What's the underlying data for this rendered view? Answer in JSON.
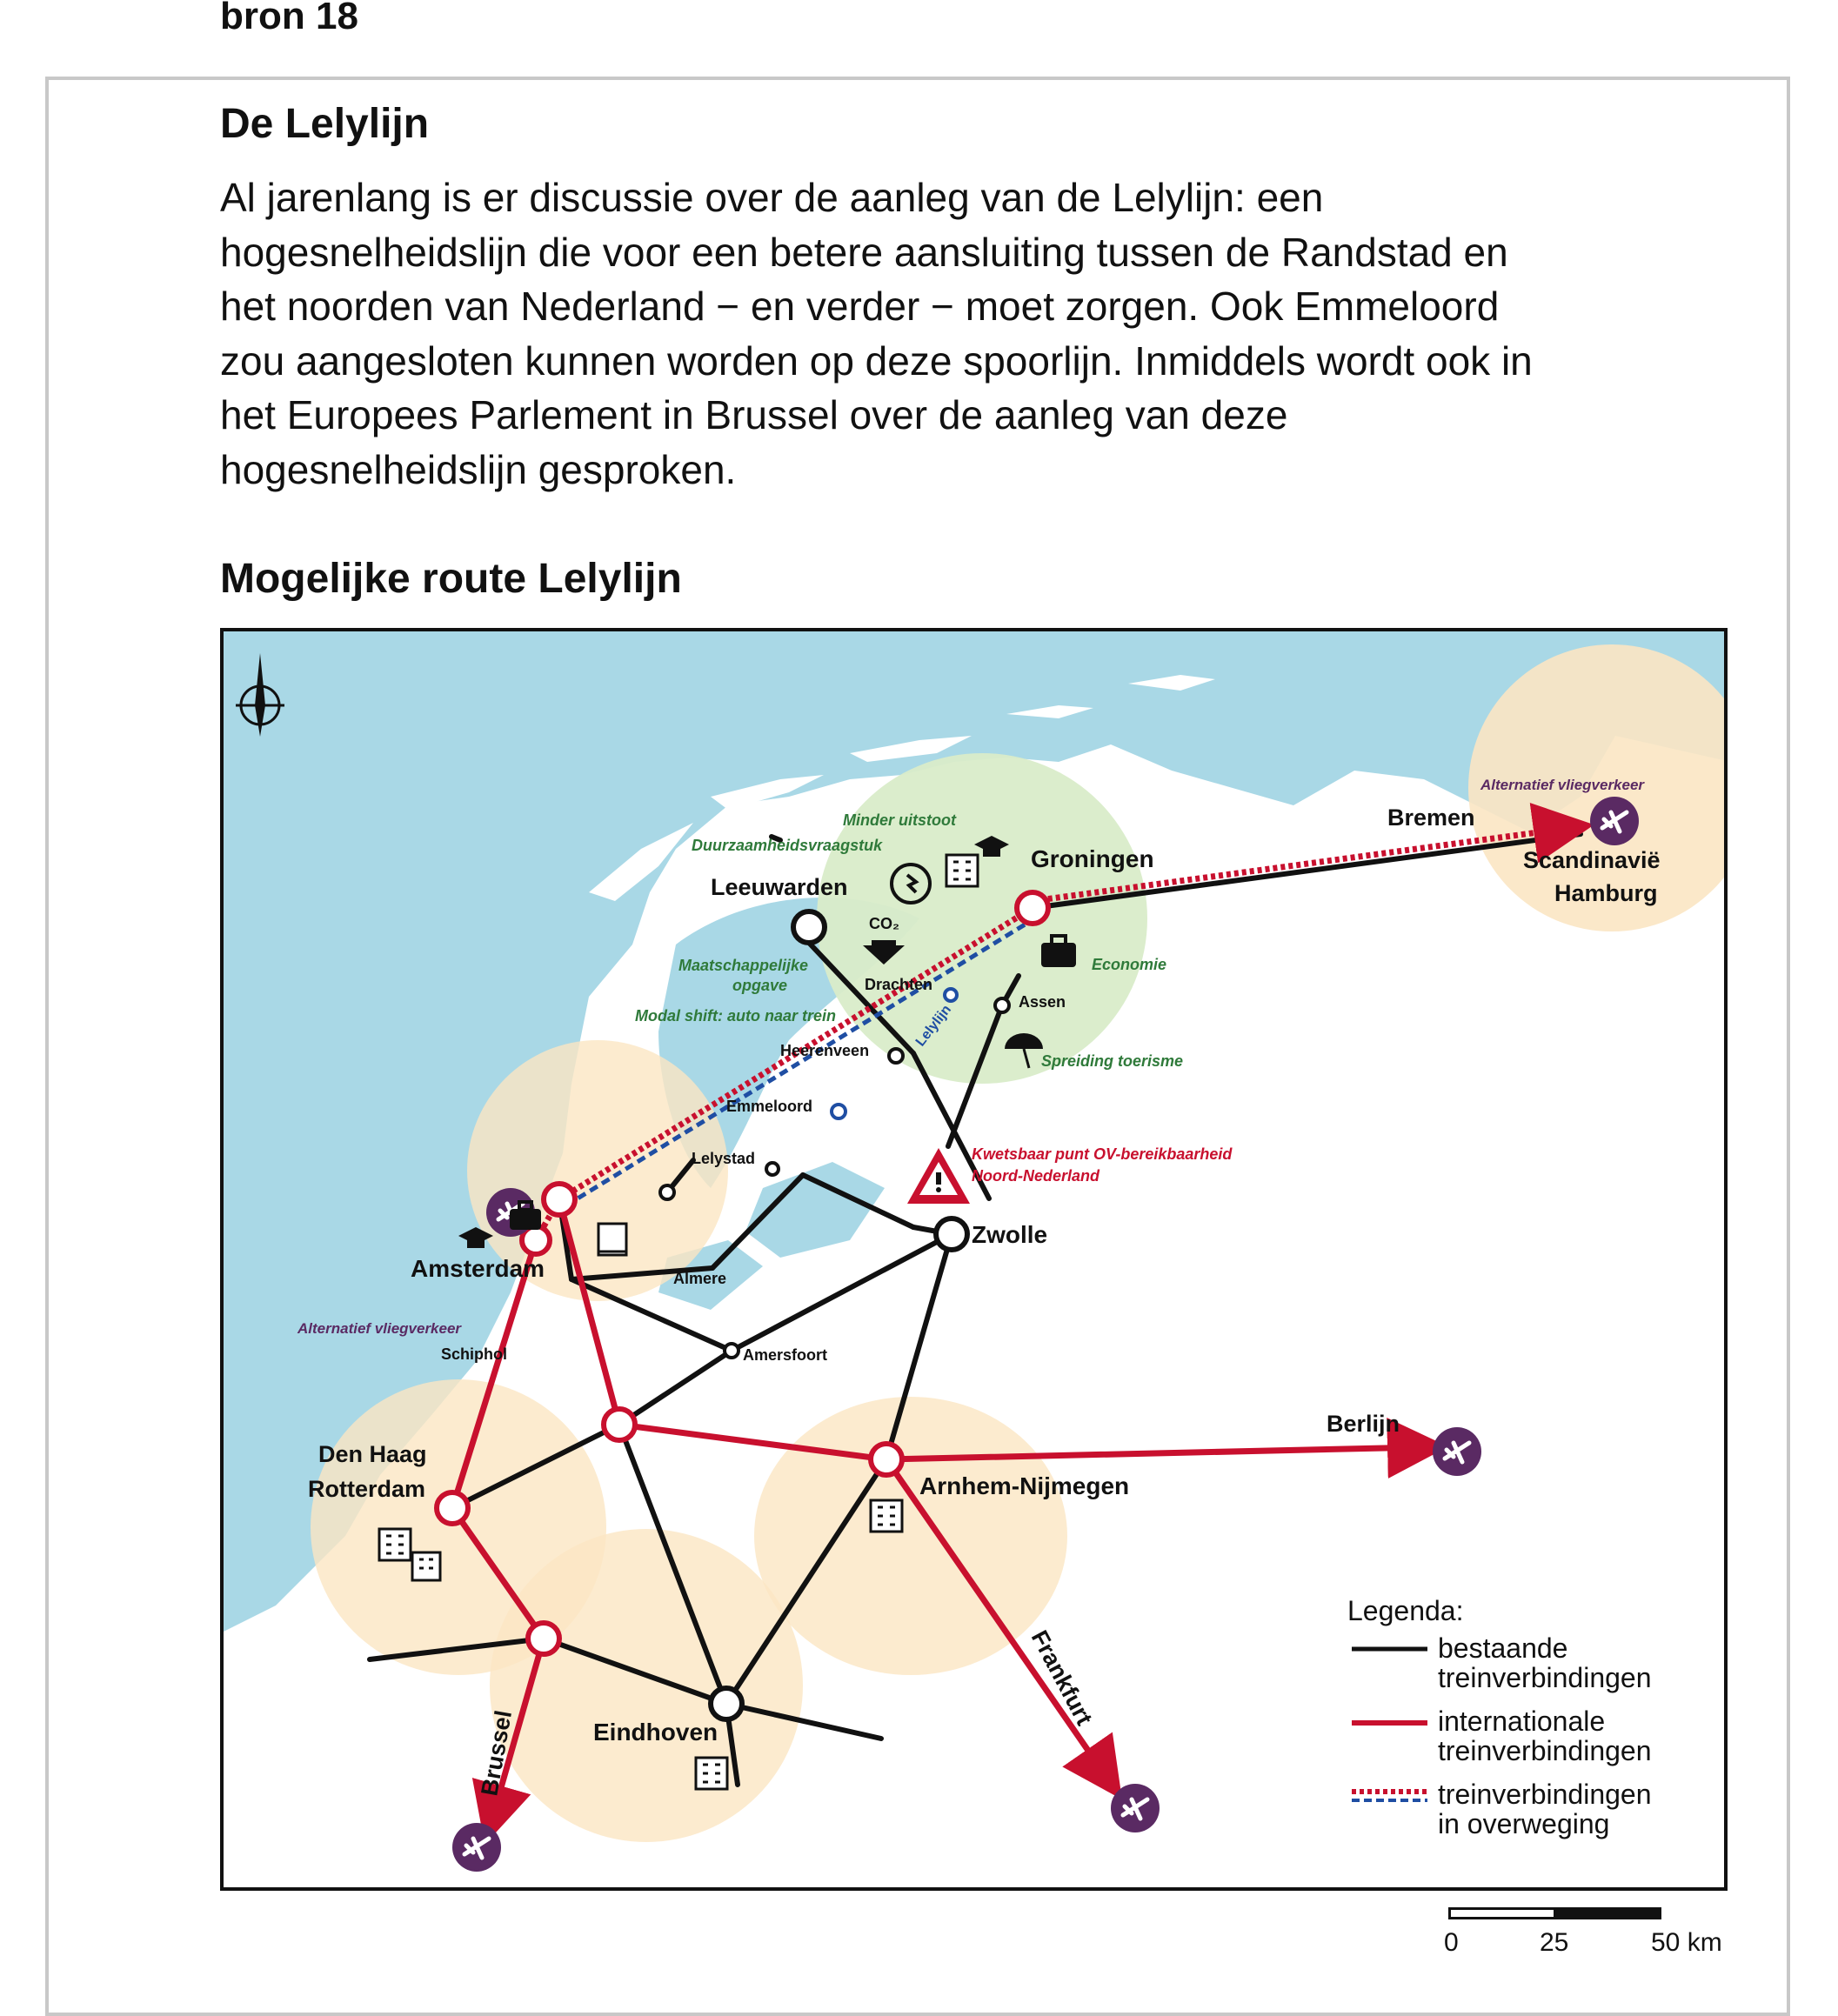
{
  "source_label": "bron 18",
  "title": "De Lelylijn",
  "intro_lines": [
    "Al jarenlang is er discussie over de aanleg van de Lelylijn: een",
    "hogesnelheidslijn die voor een betere aansluiting tussen de Randstad en",
    "het noorden van Nederland − en verder − moet zorgen. Ook Emmeloord",
    "zou aangesloten kunnen worden op deze spoorlijn. Inmiddels wordt ook in",
    "het Europees Parlement in Brussel over de aanleg van deze",
    "hogesnelheidslijn gesproken."
  ],
  "map_title": "Mogelijke route Lelylijn",
  "cities": {
    "leeuwarden": "Leeuwarden",
    "groningen": "Groningen",
    "bremen": "Bremen",
    "scandinavie": "Scandinavië",
    "hamburg": "Hamburg",
    "drachten": "Drachten",
    "assen": "Assen",
    "heerenveen": "Heerenveen",
    "emmeloord": "Emmeloord",
    "lelystad": "Lelystad",
    "zwolle": "Zwolle",
    "amsterdam": "Amsterdam",
    "almere": "Almere",
    "schiphol": "Schiphol",
    "amersfoort": "Amersfoort",
    "den_haag": "Den Haag",
    "rotterdam": "Rotterdam",
    "arnhem_nijmegen": "Arnhem-Nijmegen",
    "berlijn": "Berlijn",
    "eindhoven": "Eindhoven",
    "brussel": "Brussel",
    "frankfurt": "Frankfurt"
  },
  "line_label": "Lelylijn",
  "annotations": {
    "minder_uitstoot": "Minder uitstoot",
    "duurzaamheid": "Duurzaamheidsvraagstuk",
    "maatschappelijk_1": "Maatschappelijke",
    "maatschappelijk_2": "opgave",
    "modal_shift": "Modal shift: auto naar trein",
    "economie": "Economie",
    "spreiding": "Spreiding toerisme",
    "kwetsbaar_1": "Kwetsbaar punt OV-bereikbaarheid",
    "kwetsbaar_2": "Noord-Nederland",
    "alt_vlieg_north": "Alternatief vliegverkeer",
    "alt_vlieg_west": "Alternatief vliegverkeer",
    "co2": "CO₂"
  },
  "legend": {
    "title": "Legenda:",
    "existing_1": "bestaande",
    "existing_2": "treinverbindingen",
    "international_1": "internationale",
    "international_2": "treinverbindingen",
    "considered_1": "treinverbindingen",
    "considered_2": "in overweging"
  },
  "scale": {
    "zero": "0",
    "mid": "25",
    "end": "50 km"
  },
  "icons": [
    "compass-icon",
    "airplane-icon",
    "building-icon",
    "graduation-cap-icon",
    "briefcase-icon",
    "umbrella-icon",
    "recycle-icon",
    "warning-icon",
    "down-arrow-icon"
  ],
  "colors": {
    "sea": "#a9d8e6",
    "land": "#ffffff",
    "region_green": "#d9ecc9",
    "region_orange": "#fbe6c3",
    "rail_existing": "#111111",
    "rail_international": "#c8102e",
    "rail_considered_red": "#c8102e",
    "rail_considered_blue": "#1f4ea3",
    "airplane": "#5a2a63",
    "annotation_green": "#2f7a3a",
    "annotation_red": "#c8102e",
    "annotation_purple": "#5a2a63"
  }
}
